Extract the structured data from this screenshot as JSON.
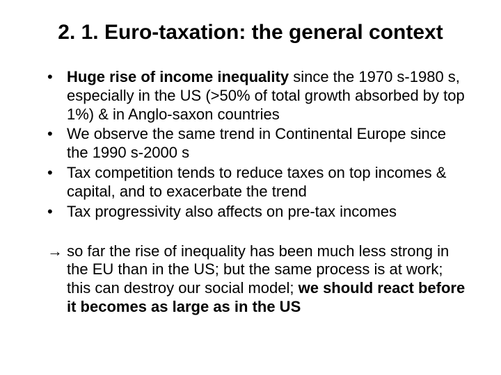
{
  "title": "2. 1. Euro-taxation: the general context",
  "bullets": [
    {
      "prefix": "Huge rise of income inequality",
      "rest": " since the 1970 s-1980 s, especially in the US (>50% of total growth absorbed by top 1%) & in Anglo-saxon countries"
    },
    {
      "prefix": "",
      "rest": "We observe the same trend in Continental Europe since the 1990 s-2000 s"
    },
    {
      "prefix": "",
      "rest": "Tax competition tends to reduce taxes on top incomes & capital, and to exacerbate the trend"
    },
    {
      "prefix": "",
      "rest": "Tax progressivity also affects on pre-tax incomes"
    }
  ],
  "conclusion": {
    "arrow": "→ ",
    "lead": "so far the rise of inequality has been much less strong in the EU than in the US; but the same process is at work; this can destroy our social model; ",
    "bold": "we should react before it becomes as large as in the US"
  },
  "style": {
    "background": "#ffffff",
    "text_color": "#000000",
    "title_fontsize": 30,
    "body_fontsize": 22
  }
}
